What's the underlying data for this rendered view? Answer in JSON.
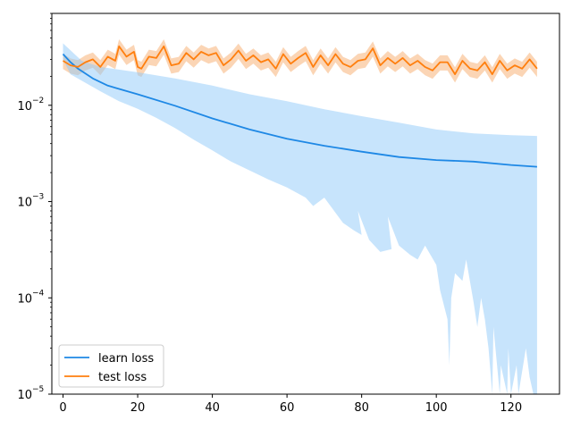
{
  "chart_data": {
    "type": "line",
    "yscale": "log",
    "xlim": [
      -3,
      133
    ],
    "ylim": [
      1e-05,
      0.09
    ],
    "grid": false,
    "legend_position": "lower-left",
    "x_ticks": [
      0,
      20,
      40,
      60,
      80,
      100,
      120
    ],
    "y_ticks": [
      {
        "value": 1e-05,
        "base": "10",
        "exp": "−5"
      },
      {
        "value": 0.0001,
        "base": "10",
        "exp": "−4"
      },
      {
        "value": 0.001,
        "base": "10",
        "exp": "−3"
      },
      {
        "value": 0.01,
        "base": "10",
        "exp": "−2"
      }
    ],
    "series": [
      {
        "name": "learn loss",
        "color": "#1e88e5",
        "band_color": "#90caf9",
        "x": [
          0,
          2,
          4,
          8,
          12,
          20,
          30,
          40,
          50,
          60,
          70,
          80,
          90,
          100,
          110,
          120,
          127
        ],
        "y": [
          0.034,
          0.028,
          0.024,
          0.019,
          0.016,
          0.013,
          0.0099,
          0.0073,
          0.0056,
          0.0045,
          0.0038,
          0.0033,
          0.0029,
          0.0027,
          0.0026,
          0.0024,
          0.0023
        ],
        "band_upper": {
          "x": [
            0,
            5,
            10,
            20,
            30,
            40,
            50,
            60,
            70,
            80,
            90,
            100,
            110,
            120,
            127
          ],
          "y": [
            0.044,
            0.029,
            0.025,
            0.022,
            0.019,
            0.016,
            0.013,
            0.011,
            0.0091,
            0.0077,
            0.0066,
            0.0056,
            0.0051,
            0.0049,
            0.0048
          ]
        },
        "band_lower": {
          "x": [
            0,
            2,
            5,
            10,
            15,
            20,
            25,
            30,
            35,
            40,
            45,
            50,
            55,
            60,
            65,
            67,
            70,
            75,
            78,
            80,
            79,
            82,
            85,
            88,
            87,
            90,
            93,
            95,
            97,
            100,
            101,
            103,
            103.5,
            104,
            105,
            107,
            108,
            110,
            111,
            112,
            113,
            114,
            115,
            115.3,
            117,
            117.3,
            119,
            119.3,
            120,
            121.5,
            122,
            124,
            125,
            126,
            127
          ],
          "y": [
            0.03,
            0.021,
            0.018,
            0.014,
            0.011,
            0.0092,
            0.0074,
            0.0058,
            0.0044,
            0.0034,
            0.0026,
            0.0021,
            0.0017,
            0.0014,
            0.0011,
            0.0009,
            0.0011,
            0.0006,
            0.0005,
            0.00045,
            0.0008,
            0.0004,
            0.0003,
            0.00032,
            0.0007,
            0.00035,
            0.00028,
            0.00025,
            0.00035,
            0.00022,
            0.00012,
            6e-05,
            2e-05,
            0.0001,
            0.00018,
            0.00015,
            0.00025,
            9e-05,
            5e-05,
            0.0001,
            6e-05,
            3e-05,
            1e-05,
            5e-05,
            1e-05,
            2e-05,
            1e-05,
            3e-05,
            1e-05,
            2e-05,
            1e-05,
            3e-05,
            1.5e-05,
            1e-05,
            1e-05
          ]
        }
      },
      {
        "name": "test loss",
        "color": "#ff7f0e",
        "band_color": "#f9c79c",
        "x": [
          0,
          2,
          4,
          6,
          8,
          10,
          12,
          14,
          15,
          17,
          19,
          20,
          21,
          23,
          25,
          27,
          29,
          31,
          33,
          35,
          37,
          39,
          41,
          43,
          45,
          47,
          49,
          51,
          53,
          55,
          57,
          59,
          61,
          63,
          65,
          67,
          69,
          71,
          73,
          75,
          77,
          79,
          81,
          83,
          85,
          87,
          89,
          91,
          93,
          95,
          97,
          99,
          101,
          103,
          105,
          107,
          109,
          111,
          113,
          115,
          117,
          119,
          121,
          123,
          125,
          127
        ],
        "y": [
          0.029,
          0.026,
          0.025,
          0.028,
          0.03,
          0.025,
          0.032,
          0.029,
          0.041,
          0.032,
          0.036,
          0.025,
          0.024,
          0.032,
          0.031,
          0.041,
          0.026,
          0.027,
          0.035,
          0.03,
          0.036,
          0.033,
          0.035,
          0.026,
          0.03,
          0.037,
          0.029,
          0.033,
          0.028,
          0.03,
          0.024,
          0.034,
          0.027,
          0.031,
          0.035,
          0.025,
          0.033,
          0.026,
          0.034,
          0.027,
          0.025,
          0.029,
          0.03,
          0.039,
          0.026,
          0.031,
          0.027,
          0.031,
          0.026,
          0.029,
          0.025,
          0.023,
          0.028,
          0.028,
          0.021,
          0.029,
          0.024,
          0.023,
          0.028,
          0.021,
          0.029,
          0.023,
          0.026,
          0.024,
          0.03,
          0.024
        ]
      }
    ]
  }
}
